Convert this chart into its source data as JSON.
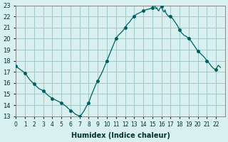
{
  "xlabel": "Humidex (Indice chaleur)",
  "ylabel": "",
  "background_color": "#d8f0f0",
  "grid_color": "#a0c8c8",
  "line_color": "#006060",
  "marker_color": "#006060",
  "xlim": [
    0,
    23
  ],
  "ylim": [
    13,
    23
  ],
  "yticks": [
    13,
    14,
    15,
    16,
    17,
    18,
    19,
    20,
    21,
    22,
    23
  ],
  "xticks": [
    0,
    1,
    2,
    3,
    4,
    5,
    6,
    7,
    8,
    9,
    10,
    11,
    12,
    13,
    14,
    15,
    16,
    17,
    18,
    19,
    20,
    21,
    22
  ],
  "x": [
    0,
    0.5,
    1,
    1.5,
    2,
    2.5,
    3,
    3.5,
    4,
    4.5,
    5,
    5.5,
    6,
    6.25,
    6.5,
    6.75,
    7,
    7.25,
    7.5,
    7.75,
    8,
    8.25,
    8.5,
    8.75,
    9,
    9.25,
    9.5,
    9.75,
    10,
    10.25,
    10.5,
    10.75,
    11,
    11.25,
    11.5,
    11.75,
    12,
    12.25,
    12.5,
    12.75,
    13,
    13.25,
    13.5,
    13.75,
    14,
    14.25,
    14.5,
    14.75,
    15,
    15.1,
    15.2,
    15.3,
    15.4,
    15.5,
    15.6,
    15.7,
    15.8,
    15.9,
    16,
    16.1,
    16.2,
    16.3,
    16.4,
    16.5,
    16.6,
    16.7,
    16.8,
    16.9,
    17,
    17.25,
    17.5,
    17.75,
    18,
    18.25,
    18.5,
    18.75,
    19,
    19.25,
    19.5,
    19.75,
    20,
    20.25,
    20.5,
    20.75,
    21,
    21.25,
    21.5,
    21.75,
    22,
    22.25,
    22.5
  ],
  "y": [
    17.5,
    17.2,
    16.9,
    16.3,
    15.9,
    15.5,
    15.3,
    14.9,
    14.6,
    14.4,
    14.2,
    13.9,
    13.5,
    13.4,
    13.2,
    13.1,
    13.0,
    13.2,
    13.5,
    13.9,
    14.2,
    14.8,
    15.3,
    15.8,
    16.2,
    16.6,
    17.0,
    17.5,
    18.0,
    18.5,
    19.0,
    19.5,
    20.0,
    20.3,
    20.5,
    20.7,
    21.0,
    21.3,
    21.5,
    21.8,
    22.0,
    22.2,
    22.3,
    22.4,
    22.5,
    22.6,
    22.65,
    22.7,
    22.8,
    23.0,
    23.1,
    22.9,
    22.7,
    22.8,
    22.6,
    22.5,
    22.7,
    22.8,
    22.9,
    22.7,
    22.5,
    22.4,
    22.6,
    22.3,
    22.2,
    22.1,
    22.0,
    22.1,
    22.0,
    21.8,
    21.5,
    21.2,
    20.8,
    20.5,
    20.3,
    20.2,
    20.0,
    19.8,
    19.5,
    19.2,
    18.9,
    18.7,
    18.5,
    18.3,
    18.0,
    17.8,
    17.5,
    17.3,
    17.2,
    17.6,
    17.4
  ],
  "marker_x": [
    0,
    1,
    2,
    3,
    4,
    5,
    6,
    7,
    8,
    9,
    10,
    11,
    12,
    13,
    14,
    15,
    16,
    17,
    18,
    19,
    20,
    21,
    22
  ],
  "marker_y": [
    17.5,
    16.9,
    15.9,
    15.3,
    14.6,
    14.2,
    13.5,
    13.0,
    14.2,
    16.2,
    18.0,
    20.0,
    21.0,
    22.0,
    22.5,
    22.8,
    22.9,
    22.0,
    20.8,
    20.0,
    18.9,
    18.0,
    17.2
  ]
}
